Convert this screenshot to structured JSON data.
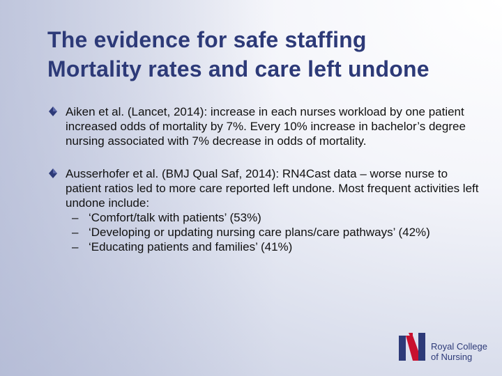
{
  "slide": {
    "title_lines": [
      "The evidence for safe staffing",
      "Mortality rates and care left undone"
    ],
    "bullets": [
      {
        "text": "Aiken et al. (Lancet, 2014): increase in each nurses workload by one patient increased odds of mortality by 7%. Every 10% increase in bachelor’s degree nursing associated with 7% decrease in odds of mortality."
      },
      {
        "text": "Ausserhofer et al. (BMJ Qual Saf, 2014): RN4Cast data – worse nurse to patient ratios led to more care reported left undone. Most frequent activities left undone include:",
        "sub_items": [
          "‘Comfort/talk with patients’ (53%)",
          "‘Developing or updating nursing care plans/care pathways’ (42%)",
          "‘Educating patients and families’ (41%)"
        ]
      }
    ],
    "sub_dash": "–"
  },
  "logo": {
    "lines": [
      "Royal College",
      "of Nursing"
    ]
  },
  "colors": {
    "title": "#2d3a78",
    "bullet_accent": "#2d3a78",
    "logo_blue": "#2d3a78",
    "logo_red": "#c8102e"
  },
  "icons": {
    "bullet": "diamond-bullet-icon",
    "logo": "rcn-logo-icon"
  }
}
